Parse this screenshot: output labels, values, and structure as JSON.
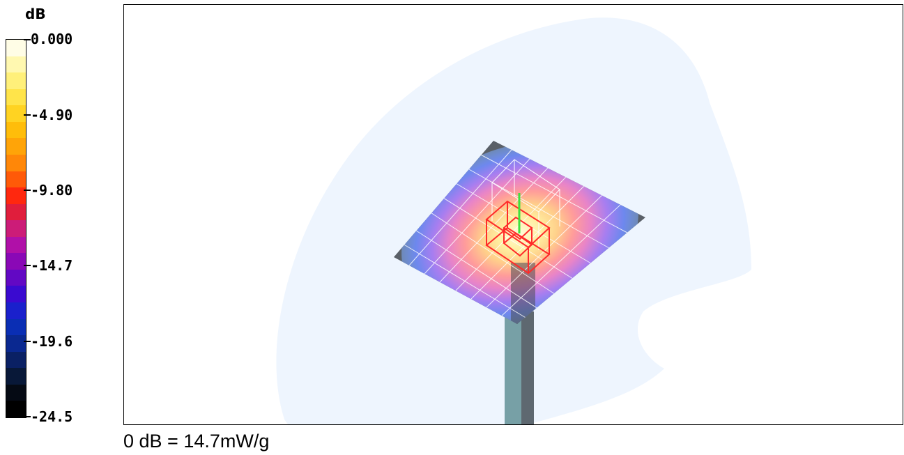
{
  "legend": {
    "unit": "dB",
    "ticks": [
      "0.000",
      "-4.90",
      "-9.80",
      "-14.7",
      "-19.6",
      "-24.5"
    ],
    "colors": [
      "#fffde6",
      "#fff8b0",
      "#fff07a",
      "#ffe44a",
      "#ffd322",
      "#ffbd0a",
      "#ffa408",
      "#ff8708",
      "#ff5a08",
      "#ff280e",
      "#e01e3c",
      "#cc1c78",
      "#b010a8",
      "#8a08b6",
      "#6208c4",
      "#3a0ad0",
      "#1a20cc",
      "#0a2eb4",
      "#0a2890",
      "#0a2064",
      "#081838",
      "#050a14",
      "#000000"
    ]
  },
  "caption": "0 dB = 14.7mW/g"
}
